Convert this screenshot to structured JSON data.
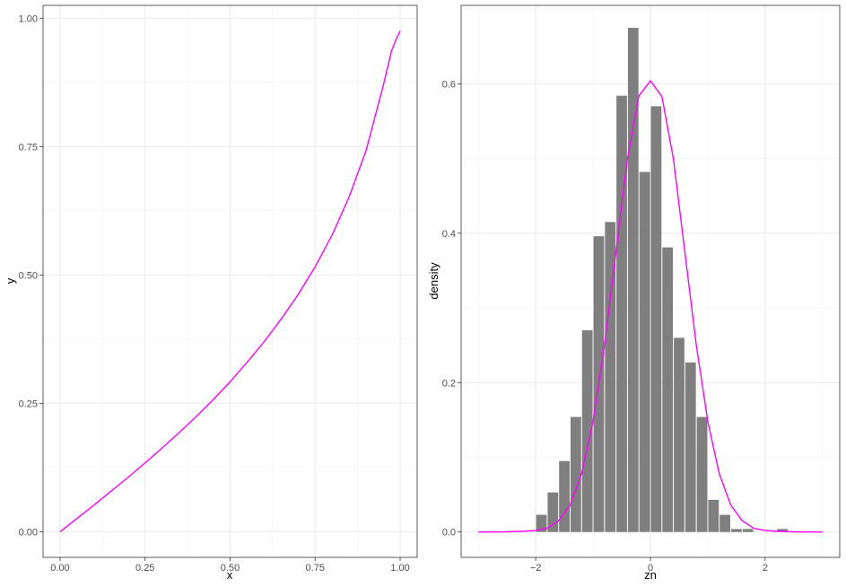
{
  "chart_data": [
    {
      "type": "line",
      "xlabel": "x",
      "ylabel": "y",
      "xlim": [
        -0.05,
        1.05
      ],
      "ylim": [
        -0.05,
        1.025
      ],
      "xticks": [
        0.0,
        0.25,
        0.5,
        0.75,
        1.0
      ],
      "xtick_labels": [
        "0.00",
        "0.25",
        "0.50",
        "0.75",
        "1.00"
      ],
      "yticks": [
        0.0,
        0.25,
        0.5,
        0.75,
        1.0
      ],
      "ytick_labels": [
        "0.00",
        "0.25",
        "0.50",
        "0.75",
        "1.00"
      ],
      "grid": true,
      "legend": "none",
      "series": [
        {
          "color": "#ff00ff",
          "x": [
            0.0,
            0.05,
            0.1,
            0.15,
            0.2,
            0.25,
            0.3,
            0.35,
            0.4,
            0.45,
            0.5,
            0.55,
            0.6,
            0.65,
            0.7,
            0.75,
            0.8,
            0.85,
            0.9,
            0.95,
            0.975,
            0.99,
            1.0
          ],
          "y": [
            0.0,
            0.026,
            0.052,
            0.079,
            0.106,
            0.134,
            0.163,
            0.193,
            0.224,
            0.257,
            0.292,
            0.33,
            0.37,
            0.414,
            0.462,
            0.516,
            0.578,
            0.652,
            0.743,
            0.868,
            0.937,
            0.962,
            0.975
          ]
        }
      ]
    },
    {
      "type": "bar",
      "xlabel": "zn",
      "ylabel": "density",
      "xlim": [
        -3.3,
        3.3
      ],
      "ylim": [
        -0.034,
        0.705
      ],
      "xticks": [
        -2,
        0,
        2
      ],
      "xtick_labels": [
        "−2",
        "0",
        "2"
      ],
      "yticks": [
        0.0,
        0.2,
        0.4,
        0.6
      ],
      "ytick_labels": [
        "0.0",
        "0.2",
        "0.4",
        "0.6"
      ],
      "grid": true,
      "legend": "none",
      "bar_color": "#7f7f7f",
      "bin_width": 0.2,
      "bin_centers": [
        -1.9,
        -1.7,
        -1.5,
        -1.3,
        -1.1,
        -0.9,
        -0.7,
        -0.5,
        -0.3,
        -0.1,
        0.1,
        0.3,
        0.5,
        0.7,
        0.9,
        1.1,
        1.3,
        1.5,
        1.7,
        1.9,
        2.1,
        2.3
      ],
      "values": [
        0.023,
        0.053,
        0.095,
        0.154,
        0.27,
        0.396,
        0.415,
        0.584,
        0.675,
        0.482,
        0.57,
        0.381,
        0.26,
        0.227,
        0.154,
        0.043,
        0.023,
        0.004,
        0.004,
        0.0,
        0.0,
        0.004
      ],
      "curve": {
        "color": "#ff00ff",
        "x": [
          -3.0,
          -2.6,
          -2.2,
          -2.0,
          -1.8,
          -1.6,
          -1.4,
          -1.2,
          -1.0,
          -0.8,
          -0.6,
          -0.4,
          -0.2,
          0.0,
          0.2,
          0.4,
          0.6,
          0.8,
          1.0,
          1.2,
          1.4,
          1.6,
          1.8,
          2.0,
          2.2,
          2.6,
          3.0
        ],
        "y": [
          0.0,
          0.0,
          0.001,
          0.002,
          0.005,
          0.015,
          0.036,
          0.078,
          0.148,
          0.25,
          0.375,
          0.5,
          0.584,
          0.604,
          0.583,
          0.5,
          0.375,
          0.25,
          0.148,
          0.078,
          0.036,
          0.015,
          0.005,
          0.002,
          0.001,
          0.0,
          0.0
        ]
      }
    }
  ]
}
